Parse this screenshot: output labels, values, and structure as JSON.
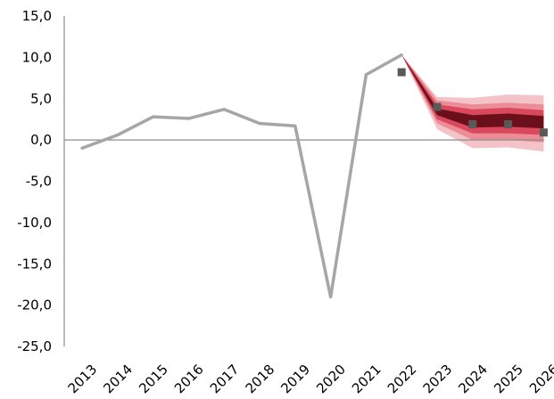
{
  "chart_data": {
    "type": "line",
    "x": [
      "2013",
      "2014",
      "2015",
      "2016",
      "2017",
      "2018",
      "2019",
      "2020",
      "2021",
      "2022",
      "2023",
      "2024",
      "2025",
      "2026"
    ],
    "y_tick_labels": [
      "15,0",
      "10,0",
      "5,0",
      "0,0",
      "-5,0",
      "-10,0",
      "-15,0",
      "-20,0",
      "-25,0"
    ],
    "ylim": [
      -25,
      15
    ],
    "grid": false,
    "colors": {
      "line": "#a6a6a6",
      "markers": "#595959",
      "fan_outer": "#f4c3c8",
      "fan_mid2": "#eb8c97",
      "fan_mid1": "#d9485c",
      "fan_inner": "#6b0f1a",
      "zero_line": "#8c8c8c"
    },
    "series": [
      {
        "values": [
          -1.0,
          0.6,
          2.8,
          2.6,
          3.7,
          2.0,
          1.7,
          -19.0,
          7.9,
          10.3,
          null,
          null,
          null,
          null
        ]
      },
      {
        "values": [
          null,
          null,
          null,
          null,
          null,
          null,
          null,
          null,
          null,
          8.2,
          4.0,
          1.9,
          1.9,
          0.9
        ]
      }
    ],
    "fan": {
      "x": [
        "2022",
        "2023",
        "2024",
        "2025",
        "2026"
      ],
      "bands": [
        {
          "level": "outer",
          "low": [
            10.3,
            1.3,
            -1.0,
            -0.9,
            -1.4
          ],
          "high": [
            10.3,
            5.2,
            5.1,
            5.5,
            5.4
          ]
        },
        {
          "level": "mid2",
          "low": [
            10.3,
            2.0,
            0.0,
            0.0,
            -0.3
          ],
          "high": [
            10.3,
            4.8,
            4.3,
            4.5,
            4.3
          ]
        },
        {
          "level": "mid1",
          "low": [
            10.3,
            2.5,
            0.8,
            0.8,
            0.6
          ],
          "high": [
            10.3,
            4.3,
            3.7,
            3.9,
            3.6
          ]
        },
        {
          "level": "inner",
          "low": [
            10.3,
            3.0,
            1.5,
            1.6,
            1.4
          ],
          "high": [
            10.3,
            3.8,
            3.0,
            3.2,
            2.9
          ]
        }
      ]
    }
  }
}
